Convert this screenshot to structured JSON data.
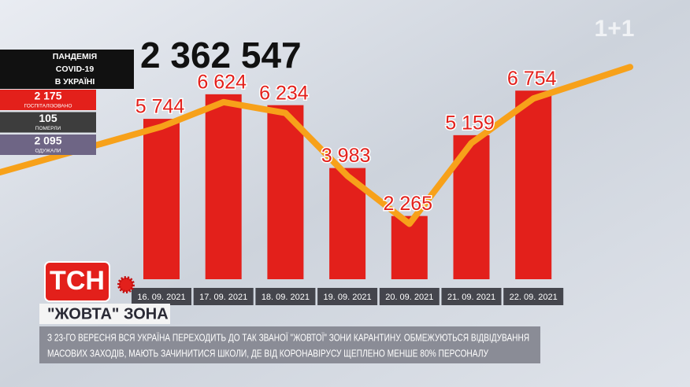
{
  "channel": "1+1",
  "panel": {
    "title_lines": [
      "ПАНДЕМІЯ",
      "COVID-19",
      "В УКРАЇНІ"
    ],
    "total": "2 362 547",
    "stats": [
      {
        "value": "2 175",
        "label": "ГОСПІТАЛІЗОВАНО",
        "color": "#e3201b"
      },
      {
        "value": "105",
        "label": "ПОМЕРЛИ",
        "color": "#3d3d3d"
      },
      {
        "value": "2 095",
        "label": "ОДУЖАЛИ",
        "color": "#6e6585"
      }
    ]
  },
  "logo": "ТСН",
  "headline": "\"ЖОВТА\" ЗОНА",
  "ticker": [
    "З 23-ГО ВЕРЕСНЯ ВСЯ УКРАЇНА ПЕРЕХОДИТЬ ДО ТАК ЗВАНОЇ \"ЖОВТОЇ\" ЗОНИ КАРАНТИНУ. ОБМЕЖУЮТЬСЯ ВІДВІДУВАННЯ",
    "МАСОВИХ ЗАХОДІВ, МАЮТЬ ЗАЧИНИТИСЯ ШКОЛИ, ДЕ ВІД КОРОНАВІРУСУ ЩЕПЛЕНО МЕНШЕ 80% ПЕРСОНАЛУ"
  ],
  "chart_data": {
    "type": "bar",
    "categories": [
      "16. 09. 2021",
      "17. 09. 2021",
      "18. 09. 2021",
      "19. 09. 2021",
      "20. 09. 2021",
      "21. 09. 2021",
      "22. 09. 2021"
    ],
    "values": [
      5744,
      6624,
      6234,
      3983,
      2265,
      5159,
      6754
    ],
    "value_labels": [
      "5 744",
      "6 624",
      "6 234",
      "3 983",
      "2 265",
      "5 159",
      "6 754"
    ],
    "color": "#e3201b",
    "line_color": "#f7a11a",
    "ylim": [
      0,
      10000
    ]
  }
}
